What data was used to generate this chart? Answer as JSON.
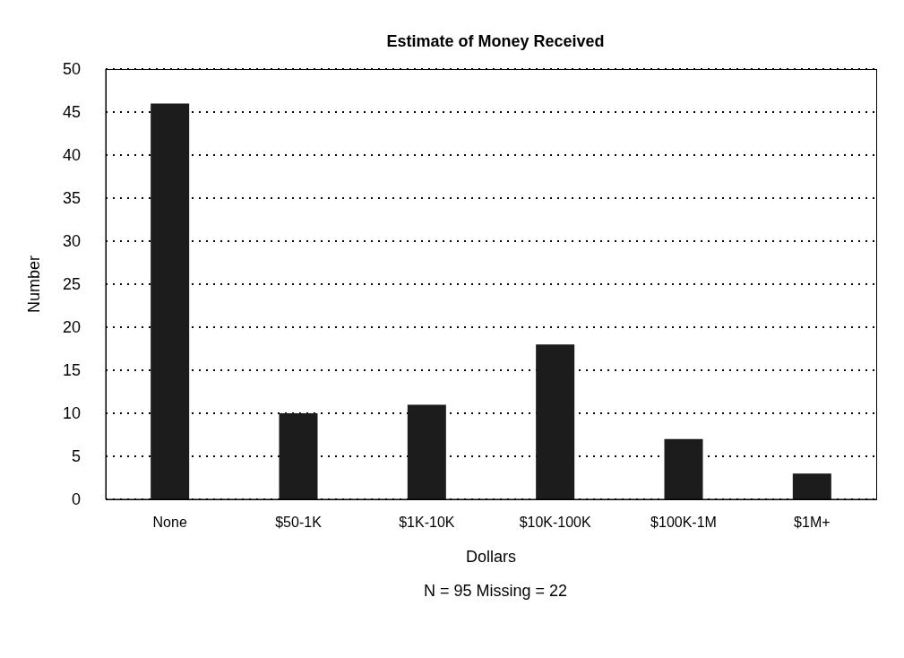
{
  "chart_data": {
    "type": "bar",
    "title": "Estimate of Money Received",
    "xlabel": "Dollars",
    "ylabel": "Number",
    "annotations": [
      "N = 95  Missing = 22"
    ],
    "categories": [
      "None",
      "$50-1K",
      "$1K-10K",
      "$10K-100K",
      "$100K-1M",
      "$1M+"
    ],
    "values": [
      46,
      10,
      11,
      18,
      7,
      3
    ],
    "color": "#1c1c1c",
    "ylim": [
      0,
      50
    ],
    "yticks": [
      0,
      5,
      10,
      15,
      20,
      25,
      30,
      35,
      40,
      45,
      50
    ],
    "grid": "y"
  }
}
